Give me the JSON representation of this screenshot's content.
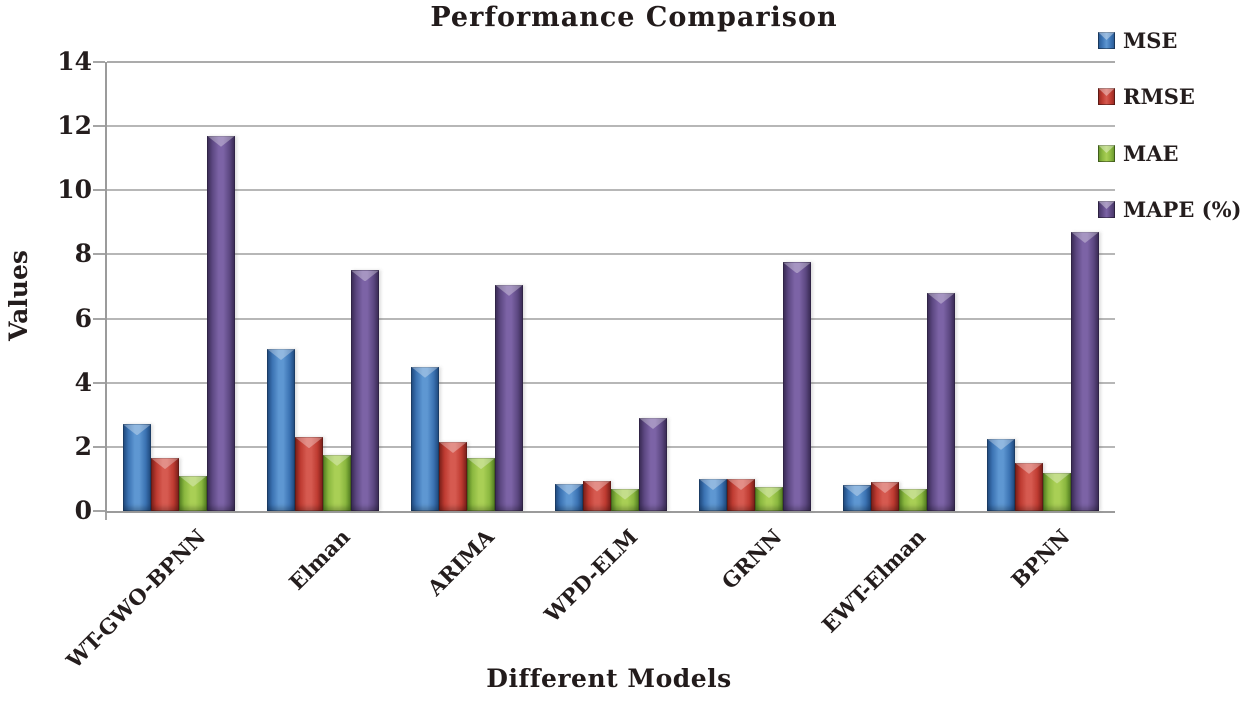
{
  "chart_data": {
    "type": "bar",
    "title": "Performance Comparison",
    "xlabel": "Different Models",
    "ylabel": "Values",
    "categories": [
      "WT-GWO-BPNN",
      "Elman",
      "ARIMA",
      "WPD-ELM",
      "GRNN",
      "EWT-Elman",
      "BPNN"
    ],
    "series": [
      {
        "name": "MSE",
        "color": "#3c74b4",
        "color_dark": "#27568f",
        "color_light": "#5e97d2",
        "values": [
          2.7,
          5.05,
          4.5,
          0.85,
          1.0,
          0.8,
          2.25
        ]
      },
      {
        "name": "RMSE",
        "color": "#be3b31",
        "color_dark": "#8f2720",
        "color_light": "#d65a50",
        "values": [
          1.65,
          2.3,
          2.15,
          0.95,
          1.0,
          0.9,
          1.5
        ]
      },
      {
        "name": "MAE",
        "color": "#8bb840",
        "color_dark": "#64922a",
        "color_light": "#a9cf55",
        "values": [
          1.1,
          1.75,
          1.65,
          0.7,
          0.75,
          0.7,
          1.2
        ]
      },
      {
        "name": "MAPE (%)",
        "color": "#5e4983",
        "color_dark": "#443463",
        "color_light": "#7c63a6",
        "values": [
          11.7,
          7.5,
          7.05,
          2.9,
          7.75,
          6.8,
          8.7
        ]
      }
    ],
    "ylim": [
      0,
      14
    ],
    "ytick_step": 2,
    "yticks": [
      0,
      2,
      4,
      6,
      8,
      10,
      12,
      14
    ],
    "grid": true,
    "legend_position": "top-right",
    "colors": {
      "background": "#ffffff",
      "gridline": "#b7b7b7",
      "axis": "#9b9b9b",
      "text": "#241d1d"
    }
  }
}
